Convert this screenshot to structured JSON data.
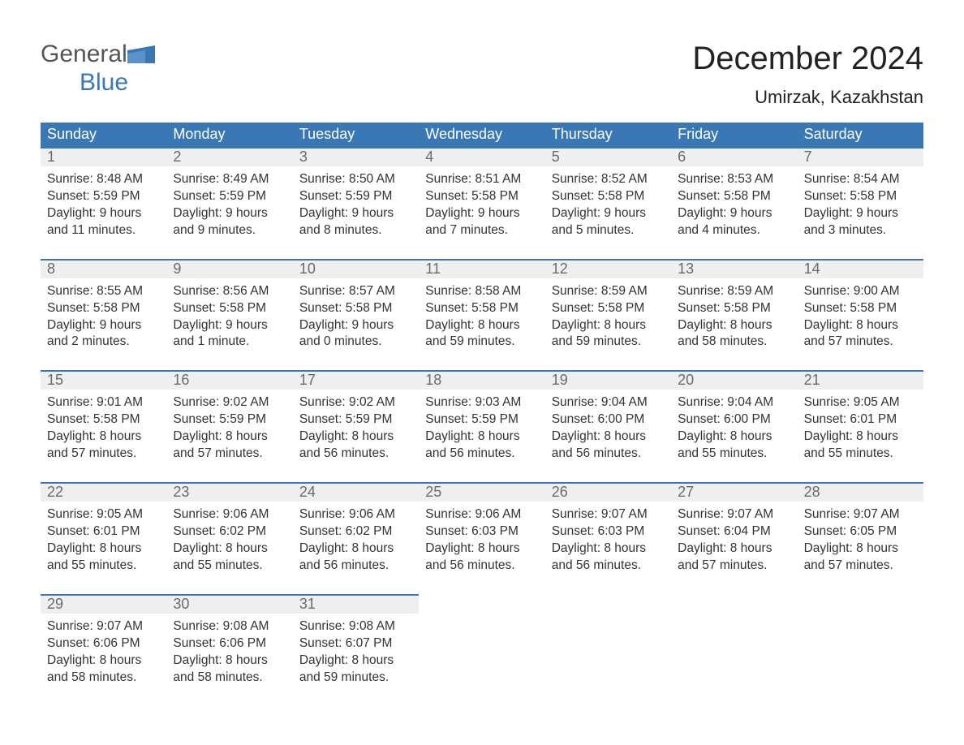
{
  "brand": {
    "general": "General",
    "blue": "Blue"
  },
  "title": "December 2024",
  "subtitle": "Umirzak, Kazakhstan",
  "colors": {
    "header_bg": "#3a78b5",
    "header_text": "#ffffff",
    "daynum_bg": "#efefef",
    "daynum_text": "#6a6a6a",
    "daynum_border": "#3a78b5",
    "body_text": "#333333",
    "page_bg": "#ffffff",
    "logo_general": "#555555",
    "logo_blue": "#3a78b5"
  },
  "layout": {
    "columns": 7,
    "header_fontsize": 18,
    "title_fontsize": 40,
    "subtitle_fontsize": 22,
    "body_fontsize": 15.5
  },
  "weekdays": [
    "Sunday",
    "Monday",
    "Tuesday",
    "Wednesday",
    "Thursday",
    "Friday",
    "Saturday"
  ],
  "weeks": [
    [
      {
        "num": "1",
        "sunrise": "Sunrise: 8:48 AM",
        "sunset": "Sunset: 5:59 PM",
        "dl1": "Daylight: 9 hours",
        "dl2": "and 11 minutes."
      },
      {
        "num": "2",
        "sunrise": "Sunrise: 8:49 AM",
        "sunset": "Sunset: 5:59 PM",
        "dl1": "Daylight: 9 hours",
        "dl2": "and 9 minutes."
      },
      {
        "num": "3",
        "sunrise": "Sunrise: 8:50 AM",
        "sunset": "Sunset: 5:59 PM",
        "dl1": "Daylight: 9 hours",
        "dl2": "and 8 minutes."
      },
      {
        "num": "4",
        "sunrise": "Sunrise: 8:51 AM",
        "sunset": "Sunset: 5:58 PM",
        "dl1": "Daylight: 9 hours",
        "dl2": "and 7 minutes."
      },
      {
        "num": "5",
        "sunrise": "Sunrise: 8:52 AM",
        "sunset": "Sunset: 5:58 PM",
        "dl1": "Daylight: 9 hours",
        "dl2": "and 5 minutes."
      },
      {
        "num": "6",
        "sunrise": "Sunrise: 8:53 AM",
        "sunset": "Sunset: 5:58 PM",
        "dl1": "Daylight: 9 hours",
        "dl2": "and 4 minutes."
      },
      {
        "num": "7",
        "sunrise": "Sunrise: 8:54 AM",
        "sunset": "Sunset: 5:58 PM",
        "dl1": "Daylight: 9 hours",
        "dl2": "and 3 minutes."
      }
    ],
    [
      {
        "num": "8",
        "sunrise": "Sunrise: 8:55 AM",
        "sunset": "Sunset: 5:58 PM",
        "dl1": "Daylight: 9 hours",
        "dl2": "and 2 minutes."
      },
      {
        "num": "9",
        "sunrise": "Sunrise: 8:56 AM",
        "sunset": "Sunset: 5:58 PM",
        "dl1": "Daylight: 9 hours",
        "dl2": "and 1 minute."
      },
      {
        "num": "10",
        "sunrise": "Sunrise: 8:57 AM",
        "sunset": "Sunset: 5:58 PM",
        "dl1": "Daylight: 9 hours",
        "dl2": "and 0 minutes."
      },
      {
        "num": "11",
        "sunrise": "Sunrise: 8:58 AM",
        "sunset": "Sunset: 5:58 PM",
        "dl1": "Daylight: 8 hours",
        "dl2": "and 59 minutes."
      },
      {
        "num": "12",
        "sunrise": "Sunrise: 8:59 AM",
        "sunset": "Sunset: 5:58 PM",
        "dl1": "Daylight: 8 hours",
        "dl2": "and 59 minutes."
      },
      {
        "num": "13",
        "sunrise": "Sunrise: 8:59 AM",
        "sunset": "Sunset: 5:58 PM",
        "dl1": "Daylight: 8 hours",
        "dl2": "and 58 minutes."
      },
      {
        "num": "14",
        "sunrise": "Sunrise: 9:00 AM",
        "sunset": "Sunset: 5:58 PM",
        "dl1": "Daylight: 8 hours",
        "dl2": "and 57 minutes."
      }
    ],
    [
      {
        "num": "15",
        "sunrise": "Sunrise: 9:01 AM",
        "sunset": "Sunset: 5:58 PM",
        "dl1": "Daylight: 8 hours",
        "dl2": "and 57 minutes."
      },
      {
        "num": "16",
        "sunrise": "Sunrise: 9:02 AM",
        "sunset": "Sunset: 5:59 PM",
        "dl1": "Daylight: 8 hours",
        "dl2": "and 57 minutes."
      },
      {
        "num": "17",
        "sunrise": "Sunrise: 9:02 AM",
        "sunset": "Sunset: 5:59 PM",
        "dl1": "Daylight: 8 hours",
        "dl2": "and 56 minutes."
      },
      {
        "num": "18",
        "sunrise": "Sunrise: 9:03 AM",
        "sunset": "Sunset: 5:59 PM",
        "dl1": "Daylight: 8 hours",
        "dl2": "and 56 minutes."
      },
      {
        "num": "19",
        "sunrise": "Sunrise: 9:04 AM",
        "sunset": "Sunset: 6:00 PM",
        "dl1": "Daylight: 8 hours",
        "dl2": "and 56 minutes."
      },
      {
        "num": "20",
        "sunrise": "Sunrise: 9:04 AM",
        "sunset": "Sunset: 6:00 PM",
        "dl1": "Daylight: 8 hours",
        "dl2": "and 55 minutes."
      },
      {
        "num": "21",
        "sunrise": "Sunrise: 9:05 AM",
        "sunset": "Sunset: 6:01 PM",
        "dl1": "Daylight: 8 hours",
        "dl2": "and 55 minutes."
      }
    ],
    [
      {
        "num": "22",
        "sunrise": "Sunrise: 9:05 AM",
        "sunset": "Sunset: 6:01 PM",
        "dl1": "Daylight: 8 hours",
        "dl2": "and 55 minutes."
      },
      {
        "num": "23",
        "sunrise": "Sunrise: 9:06 AM",
        "sunset": "Sunset: 6:02 PM",
        "dl1": "Daylight: 8 hours",
        "dl2": "and 55 minutes."
      },
      {
        "num": "24",
        "sunrise": "Sunrise: 9:06 AM",
        "sunset": "Sunset: 6:02 PM",
        "dl1": "Daylight: 8 hours",
        "dl2": "and 56 minutes."
      },
      {
        "num": "25",
        "sunrise": "Sunrise: 9:06 AM",
        "sunset": "Sunset: 6:03 PM",
        "dl1": "Daylight: 8 hours",
        "dl2": "and 56 minutes."
      },
      {
        "num": "26",
        "sunrise": "Sunrise: 9:07 AM",
        "sunset": "Sunset: 6:03 PM",
        "dl1": "Daylight: 8 hours",
        "dl2": "and 56 minutes."
      },
      {
        "num": "27",
        "sunrise": "Sunrise: 9:07 AM",
        "sunset": "Sunset: 6:04 PM",
        "dl1": "Daylight: 8 hours",
        "dl2": "and 57 minutes."
      },
      {
        "num": "28",
        "sunrise": "Sunrise: 9:07 AM",
        "sunset": "Sunset: 6:05 PM",
        "dl1": "Daylight: 8 hours",
        "dl2": "and 57 minutes."
      }
    ],
    [
      {
        "num": "29",
        "sunrise": "Sunrise: 9:07 AM",
        "sunset": "Sunset: 6:06 PM",
        "dl1": "Daylight: 8 hours",
        "dl2": "and 58 minutes."
      },
      {
        "num": "30",
        "sunrise": "Sunrise: 9:08 AM",
        "sunset": "Sunset: 6:06 PM",
        "dl1": "Daylight: 8 hours",
        "dl2": "and 58 minutes."
      },
      {
        "num": "31",
        "sunrise": "Sunrise: 9:08 AM",
        "sunset": "Sunset: 6:07 PM",
        "dl1": "Daylight: 8 hours",
        "dl2": "and 59 minutes."
      },
      null,
      null,
      null,
      null
    ]
  ]
}
